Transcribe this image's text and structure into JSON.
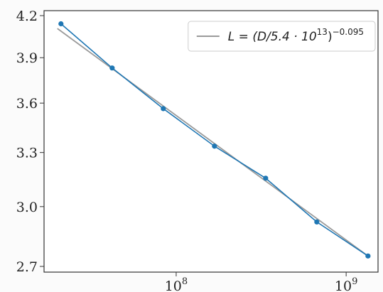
{
  "chart_data": {
    "type": "line",
    "x_log": true,
    "y_log": true,
    "xlim": [
      16700000,
      1540000000
    ],
    "ylim": [
      2.673,
      4.237
    ],
    "xticks": [
      {
        "value": 100000000,
        "label": "10",
        "exponent": "8"
      },
      {
        "value": 1000000000,
        "label": "10",
        "exponent": "9"
      }
    ],
    "yticks": [
      2.7,
      {
        "value": 3,
        "label": "3.0"
      },
      3.3,
      3.6,
      3.9,
      4.2
    ],
    "legend_position": "upper right",
    "series": [
      {
        "color": "#1f77b4",
        "markers": true,
        "in_legend": false,
        "x": [
          21000000,
          42000000,
          84000000,
          168000000,
          336000000,
          672000000,
          1344000000
        ],
        "values": [
          4.14,
          3.83,
          3.565,
          3.337,
          3.154,
          2.92,
          2.75
        ]
      },
      {
        "color": "#9a9a9a",
        "markers": false,
        "in_legend": true,
        "name_parts": [
          {
            "text": "L = (D/5.4 · 10"
          },
          {
            "text": "13",
            "sup": true
          },
          {
            "text": ")"
          },
          {
            "text": "−0.095",
            "sup": true
          }
        ],
        "x": [
          20000000,
          1344000000
        ],
        "values": [
          4.106,
          2.75
        ]
      }
    ]
  }
}
